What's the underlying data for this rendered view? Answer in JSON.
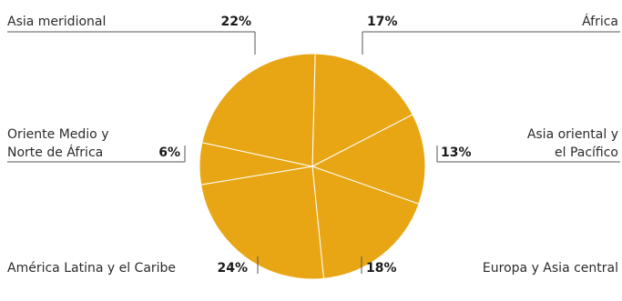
{
  "colors": {
    "slice_fill": "#e8a614",
    "slice_stroke": "#ffffff",
    "text": "#2b2b2b",
    "rule": "#555555"
  },
  "chart_data": {
    "type": "pie",
    "start": "top",
    "direction": "clockwise",
    "slices": [
      {
        "label": "África",
        "label_lines": [
          "África"
        ],
        "pct_text": "17%",
        "value": 17
      },
      {
        "label": "Asia oriental y el Pacífico",
        "label_lines": [
          "Asia oriental y",
          "el Pacífico"
        ],
        "pct_text": "13%",
        "value": 13
      },
      {
        "label": "Europa y Asia central",
        "label_lines": [
          "Europa y Asia central"
        ],
        "pct_text": "18%",
        "value": 18
      },
      {
        "label": "América Latina y el Caribe",
        "label_lines": [
          "América Latina y el Caribe"
        ],
        "pct_text": "24%",
        "value": 24
      },
      {
        "label": "Oriente Medio y Norte de África",
        "label_lines": [
          "Oriente Medio y",
          "Norte de África"
        ],
        "pct_text": "6%",
        "value": 6
      },
      {
        "label": "Asia meridional",
        "label_lines": [
          "Asia meridional"
        ],
        "pct_text": "22%",
        "value": 22
      }
    ]
  }
}
